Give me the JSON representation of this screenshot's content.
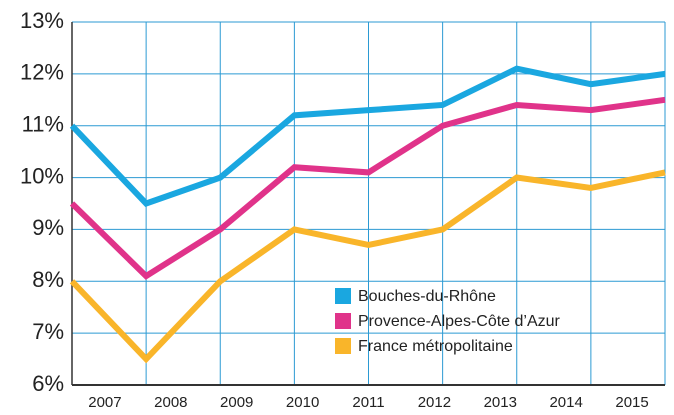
{
  "chart_data": {
    "type": "line",
    "categories": [
      "2007",
      "2008",
      "2009",
      "2010",
      "2011",
      "2012",
      "2013",
      "2014",
      "2015"
    ],
    "series": [
      {
        "name": "Bouches-du-Rhône",
        "color": "#1aa7e0",
        "values": [
          11.0,
          9.5,
          10.0,
          11.2,
          11.3,
          11.4,
          12.1,
          11.8,
          12.0
        ]
      },
      {
        "name": "Provence-Alpes-Côte d’Azur",
        "color": "#e0338a",
        "values": [
          9.5,
          8.1,
          9.0,
          10.2,
          10.1,
          11.0,
          11.4,
          11.3,
          11.5
        ]
      },
      {
        "name": "France métropolitaine",
        "color": "#f9b52a",
        "values": [
          8.0,
          6.5,
          8.0,
          9.0,
          8.7,
          9.0,
          10.0,
          9.8,
          10.1
        ]
      }
    ],
    "ylim": [
      6,
      13
    ],
    "yticks": [
      {
        "value": 6,
        "label": "6%"
      },
      {
        "value": 7,
        "label": "7%"
      },
      {
        "value": 8,
        "label": "8%"
      },
      {
        "value": 9,
        "label": "9%"
      },
      {
        "value": 10,
        "label": "10%"
      },
      {
        "value": 11,
        "label": "11%"
      },
      {
        "value": 12,
        "label": "12%"
      },
      {
        "value": 13,
        "label": "13%"
      }
    ],
    "grid": true,
    "grid_color": "#2b9ad3"
  }
}
